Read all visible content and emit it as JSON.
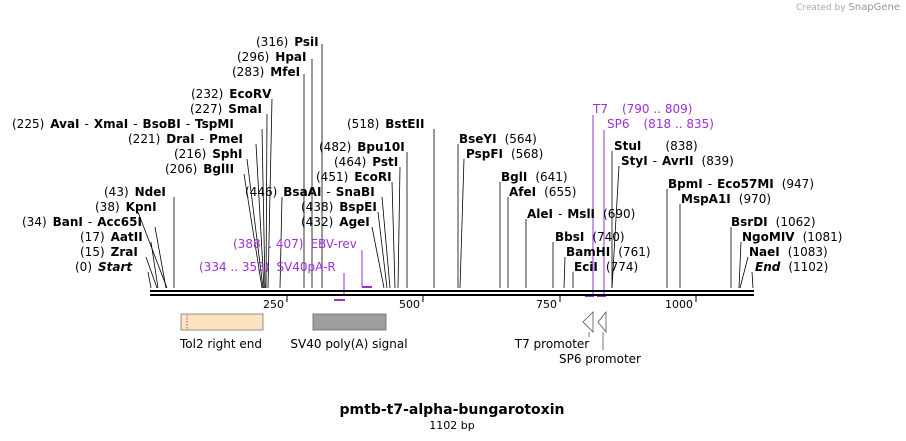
{
  "credit": {
    "prefix": "Created by",
    "brand": "SnapGene"
  },
  "title": "pmtb-t7-alpha-bungarotoxin",
  "subtitle": "1102 bp",
  "axis_ticks": [
    "250",
    "500",
    "750",
    "1000"
  ],
  "enzymes": [
    {
      "name": "Start",
      "pos": "(0)",
      "style": "enit"
    },
    {
      "name": "ZraI",
      "pos": "(15)"
    },
    {
      "name": "AatII",
      "pos": "(17)"
    },
    {
      "name": "BanI",
      "pos": "(34)",
      "name2": "Acc65I"
    },
    {
      "name": "KpnI",
      "pos": "(38)"
    },
    {
      "name": "NdeI",
      "pos": "(43)"
    },
    {
      "name": "BglII",
      "pos": "(206)"
    },
    {
      "name": "SphI",
      "pos": "(216)"
    },
    {
      "name": "DraI",
      "pos": "(221)",
      "name2": "PmeI"
    },
    {
      "name": "AvaI",
      "pos": "(225)",
      "name2": "XmaI",
      "name3": "BsoBI",
      "name4": "TspMI"
    },
    {
      "name": "SmaI",
      "pos": "(227)"
    },
    {
      "name": "EcoRV",
      "pos": "(232)"
    },
    {
      "name": "MfeI",
      "pos": "(283)"
    },
    {
      "name": "HpaI",
      "pos": "(296)"
    },
    {
      "name": "PsiI",
      "pos": "(316)"
    },
    {
      "name": "BsaAI",
      "pos": "(446)",
      "name2": "SnaBI"
    },
    {
      "name": "AgeI",
      "pos": "(432)"
    },
    {
      "name": "BspEI",
      "pos": "(438)"
    },
    {
      "name": "EcoRI",
      "pos": "(451)"
    },
    {
      "name": "PstI",
      "pos": "(464)"
    },
    {
      "name": "Bpu10I",
      "pos": "(482)"
    },
    {
      "name": "BstEII",
      "pos": "(518)"
    },
    {
      "name": "BseYI",
      "pos": "(564)"
    },
    {
      "name": "PspFI",
      "pos": "(568)"
    },
    {
      "name": "BglI",
      "pos": "(641)"
    },
    {
      "name": "AfeI",
      "pos": "(655)"
    },
    {
      "name": "AleI",
      "pos": "(690)",
      "name2": "MslI"
    },
    {
      "name": "BbsI",
      "pos": "(740)"
    },
    {
      "name": "BamHI",
      "pos": "(761)"
    },
    {
      "name": "EciI",
      "pos": "(774)"
    },
    {
      "name": "StuI",
      "pos": "(838)"
    },
    {
      "name": "StyI",
      "pos": "(839)",
      "name2": "AvrII"
    },
    {
      "name": "BpmI",
      "pos": "(947)",
      "name2": "Eco57MI"
    },
    {
      "name": "MspA1I",
      "pos": "(970)"
    },
    {
      "name": "BsrDI",
      "pos": "(1062)"
    },
    {
      "name": "NgoMIV",
      "pos": "(1081)"
    },
    {
      "name": "NaeI",
      "pos": "(1083)"
    },
    {
      "name": "End",
      "pos": "(1102)",
      "style": "enit"
    }
  ],
  "primers": [
    {
      "name": "T7",
      "range": "(790 .. 809)"
    },
    {
      "name": "SP6",
      "range": "(818 .. 835)"
    },
    {
      "name": "EBV-rev",
      "range": "(388 .. 407)"
    },
    {
      "name": "SV40pA-R",
      "range": "(334 .. 353)"
    }
  ],
  "features": [
    {
      "name": "Tol2 right end",
      "color": "#fde3bf"
    },
    {
      "name": "SV40 poly(A) signal",
      "color": "#9e9e9e"
    },
    {
      "name": "T7 promoter",
      "color": "#ffffff"
    },
    {
      "name": "SP6 promoter",
      "color": "#ffffff"
    }
  ],
  "colors": {
    "primer": "#9b30d9",
    "backbone": "#000000"
  }
}
